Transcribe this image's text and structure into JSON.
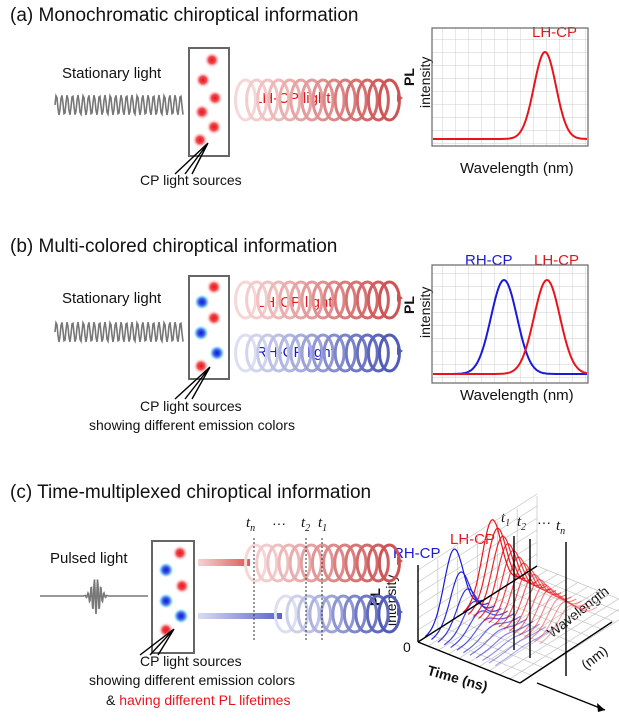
{
  "panel_a": {
    "title": "(a) Monochromatic chiroptical information",
    "light_label": "Stationary light",
    "helix_label": "LH-CP light",
    "sources_label": "CP light sources",
    "plot": {
      "peak_label": "LH-CP",
      "ylabel_1": "PL",
      "ylabel_2": "intensity",
      "xlabel": "Wavelength (nm)"
    }
  },
  "panel_b": {
    "title": "(b) Multi-colored chiroptical information",
    "light_label": "Stationary light",
    "helix_lh_label": "LH-CP light",
    "helix_rh_label": "RH-CP light",
    "sources_line1": "CP light sources",
    "sources_line2": "showing different emission colors",
    "plot": {
      "peak_rh_label": "RH-CP",
      "peak_lh_label": "LH-CP",
      "ylabel_1": "PL",
      "ylabel_2": "intensity",
      "xlabel": "Wavelength (nm)"
    }
  },
  "panel_c": {
    "title": "(c) Time-multiplexed chiroptical information",
    "light_label": "Pulsed light",
    "sources_line1": "CP light sources",
    "sources_line2": "showing different emission colors",
    "sources_line3_prefix": "& ",
    "sources_line3_highlight": "having different PL lifetimes",
    "time_marks": {
      "tn": "t",
      "tn_sub": "n",
      "dots": "···",
      "t2": "t",
      "t2_sub": "2",
      "t1": "t",
      "t1_sub": "1"
    },
    "plot3d": {
      "rh_label": "RH-CP",
      "lh_label": "LH-CP",
      "ylabel_1": "PL",
      "ylabel_2": "intensity",
      "zero": "0",
      "time_label": "Time (ns)",
      "wl_label_1": "Wavelength",
      "wl_label_2": "(nm)",
      "t1": "t",
      "t1_sub": "1",
      "t2": "t",
      "t2_sub": "2",
      "dots": "···",
      "tn": "t",
      "tn_sub": "n"
    }
  },
  "colors": {
    "red": "#e8141b",
    "blue": "#1a1ad8",
    "gray": "#777777"
  }
}
